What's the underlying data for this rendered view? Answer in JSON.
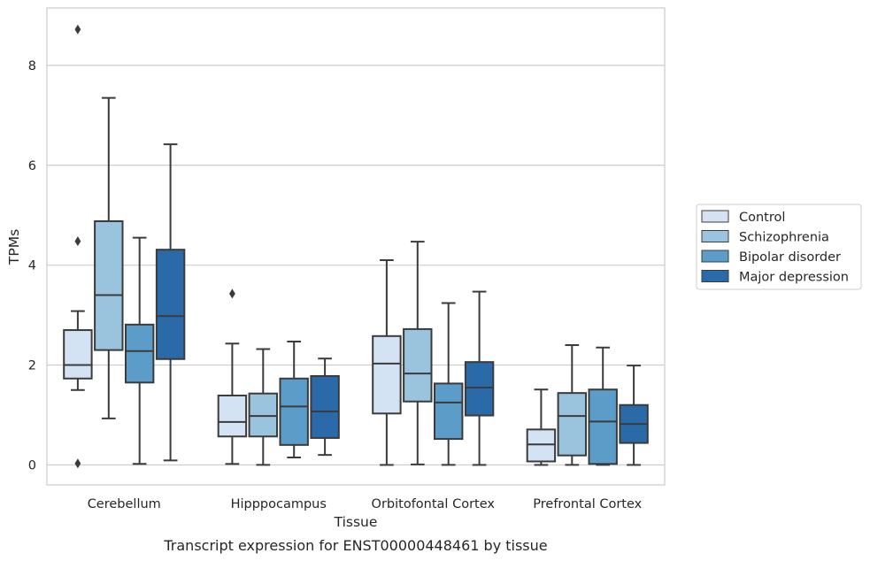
{
  "chart_data": {
    "type": "boxplot",
    "title": "",
    "caption": "Transcript expression for ENST00000448461 by tissue",
    "xlabel": "Tissue",
    "ylabel": "TPMs",
    "ylim": [
      -0.4,
      9.15
    ],
    "yticks": [
      0,
      2,
      4,
      6,
      8
    ],
    "grid": "horizontal",
    "legend_position": "right",
    "categories": [
      "Cerebellum",
      "Hipppocampus",
      "Orbitofontal Cortex",
      "Prefrontal Cortex"
    ],
    "series": [
      {
        "name": "Control",
        "color": "#d3e3f3",
        "boxes": [
          {
            "whislo": 1.5,
            "q1": 1.73,
            "med": 2.0,
            "q3": 2.7,
            "whishi": 3.08,
            "fliers": [
              8.72,
              4.48,
              0.03
            ]
          },
          {
            "whislo": 0.02,
            "q1": 0.57,
            "med": 0.86,
            "q3": 1.39,
            "whishi": 2.43,
            "fliers": [
              3.43
            ]
          },
          {
            "whislo": 0.0,
            "q1": 1.03,
            "med": 2.03,
            "q3": 2.58,
            "whishi": 4.1,
            "fliers": []
          },
          {
            "whislo": 0.0,
            "q1": 0.07,
            "med": 0.41,
            "q3": 0.71,
            "whishi": 1.51,
            "fliers": []
          }
        ]
      },
      {
        "name": "Schizophrenia",
        "color": "#9ac4de",
        "boxes": [
          {
            "whislo": 0.93,
            "q1": 2.3,
            "med": 3.4,
            "q3": 4.88,
            "whishi": 7.35,
            "fliers": []
          },
          {
            "whislo": 0.0,
            "q1": 0.57,
            "med": 0.98,
            "q3": 1.43,
            "whishi": 2.32,
            "fliers": []
          },
          {
            "whislo": 0.01,
            "q1": 1.27,
            "med": 1.83,
            "q3": 2.72,
            "whishi": 4.47,
            "fliers": []
          },
          {
            "whislo": 0.0,
            "q1": 0.19,
            "med": 0.98,
            "q3": 1.44,
            "whishi": 2.4,
            "fliers": []
          }
        ]
      },
      {
        "name": "Bipolar disorder",
        "color": "#5b9cc9",
        "boxes": [
          {
            "whislo": 0.02,
            "q1": 1.65,
            "med": 2.28,
            "q3": 2.81,
            "whishi": 4.55,
            "fliers": []
          },
          {
            "whislo": 0.15,
            "q1": 0.4,
            "med": 1.17,
            "q3": 1.73,
            "whishi": 2.47,
            "fliers": []
          },
          {
            "whislo": 0.0,
            "q1": 0.52,
            "med": 1.25,
            "q3": 1.63,
            "whishi": 3.24,
            "fliers": []
          },
          {
            "whislo": 0.0,
            "q1": 0.02,
            "med": 0.87,
            "q3": 1.51,
            "whishi": 2.35,
            "fliers": []
          }
        ]
      },
      {
        "name": "Major depression",
        "color": "#2a6aa8",
        "boxes": [
          {
            "whislo": 0.09,
            "q1": 2.12,
            "med": 2.98,
            "q3": 4.31,
            "whishi": 6.42,
            "fliers": []
          },
          {
            "whislo": 0.2,
            "q1": 0.54,
            "med": 1.07,
            "q3": 1.78,
            "whishi": 2.13,
            "fliers": []
          },
          {
            "whislo": 0.0,
            "q1": 0.99,
            "med": 1.55,
            "q3": 2.06,
            "whishi": 3.47,
            "fliers": []
          },
          {
            "whislo": 0.0,
            "q1": 0.44,
            "med": 0.82,
            "q3": 1.2,
            "whishi": 1.99,
            "fliers": []
          }
        ]
      }
    ]
  }
}
